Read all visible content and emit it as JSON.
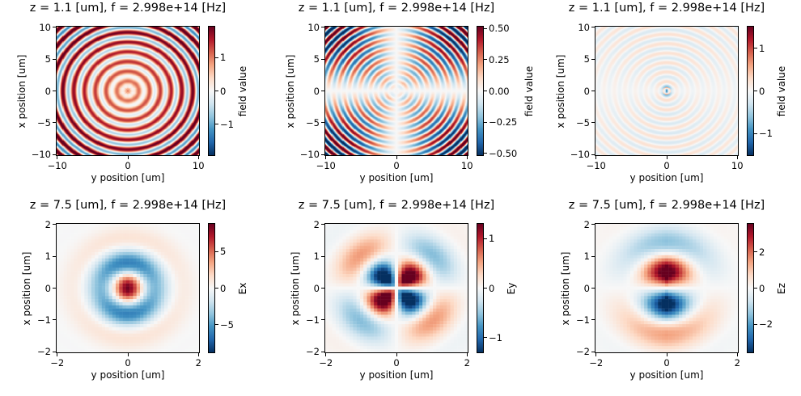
{
  "chart_data": [
    {
      "type": "heatmap",
      "title": "z = 1.1 [um], f = 2.998e+14 [Hz]",
      "xlabel": "y position [um]",
      "ylabel": "x position [um]",
      "xlim": [
        -10.2,
        10.2
      ],
      "ylim": [
        -10.2,
        10.2
      ],
      "xticks": [
        -10,
        0,
        10
      ],
      "yticks": [
        -10,
        -5,
        0,
        5,
        10
      ],
      "colorbar": {
        "label": "field value",
        "clim": [
          -1.95,
          1.95
        ],
        "ticks": [
          -1,
          0,
          1
        ],
        "tick_labels": [
          "−1",
          "0",
          "1"
        ]
      },
      "colormap": "RdBu_r",
      "pattern": "concentric rings"
    },
    {
      "type": "heatmap",
      "title": "z = 1.1 [um], f = 2.998e+14 [Hz]",
      "xlabel": "y position [um]",
      "ylabel": "x position [um]",
      "xlim": [
        -10.2,
        10.2
      ],
      "ylim": [
        -10.2,
        10.2
      ],
      "xticks": [
        -10,
        0,
        10
      ],
      "yticks": [
        -10,
        -5,
        0,
        5,
        10
      ],
      "colorbar": {
        "label": "field value",
        "clim": [
          -0.52,
          0.52
        ],
        "ticks": [
          -0.5,
          -0.25,
          0,
          0.25,
          0.5
        ],
        "tick_labels": [
          "−0.50",
          "−0.25",
          "0.00",
          "0.25",
          "0.50"
        ]
      },
      "colormap": "RdBu_r",
      "pattern": "quadrupole rings"
    },
    {
      "type": "heatmap",
      "title": "z = 1.1 [um], f = 2.998e+14 [Hz]",
      "xlabel": "y position [um]",
      "ylabel": "x position [um]",
      "xlim": [
        -10.2,
        10.2
      ],
      "ylim": [
        -10.2,
        10.2
      ],
      "xticks": [
        -10,
        0,
        10
      ],
      "yticks": [
        -10,
        -5,
        0,
        5,
        10
      ],
      "colorbar": {
        "label": "field value",
        "clim": [
          -1.53,
          1.53
        ],
        "ticks": [
          -1,
          0,
          1
        ],
        "tick_labels": [
          "−1",
          "0",
          "1"
        ]
      },
      "colormap": "RdBu_r",
      "pattern": "dipole rings"
    },
    {
      "type": "heatmap",
      "title": "z = 7.5 [um], f = 2.998e+14 [Hz]",
      "xlabel": "y position [um]",
      "ylabel": "x position [um]",
      "xlim": [
        -2.04,
        2.04
      ],
      "ylim": [
        -2.04,
        2.04
      ],
      "xticks": [
        -2,
        0,
        2
      ],
      "yticks": [
        -2,
        -1,
        0,
        1,
        2
      ],
      "colorbar": {
        "label": "Ex",
        "clim": [
          -8.9,
          8.9
        ],
        "ticks": [
          -5,
          0,
          5
        ],
        "tick_labels": [
          "−5",
          "0",
          "5"
        ]
      },
      "colormap": "RdBu_r",
      "pattern": "central peak"
    },
    {
      "type": "heatmap",
      "title": "z = 7.5 [um], f = 2.998e+14 [Hz]",
      "xlabel": "y position [um]",
      "ylabel": "x position [um]",
      "xlim": [
        -2.04,
        2.04
      ],
      "ylim": [
        -2.04,
        2.04
      ],
      "xticks": [
        -2,
        0,
        2
      ],
      "yticks": [
        -2,
        -1,
        0,
        1,
        2
      ],
      "colorbar": {
        "label": "Ey",
        "clim": [
          -1.31,
          1.31
        ],
        "ticks": [
          -1,
          0,
          1
        ],
        "tick_labels": [
          "−1",
          "0",
          "1"
        ]
      },
      "colormap": "RdBu_r",
      "pattern": "quadrupole"
    },
    {
      "type": "heatmap",
      "title": "z = 7.5 [um], f = 2.998e+14 [Hz]",
      "xlabel": "y position [um]",
      "ylabel": "x position [um]",
      "xlim": [
        -2.04,
        2.04
      ],
      "ylim": [
        -2.04,
        2.04
      ],
      "xticks": [
        -2,
        0,
        2
      ],
      "yticks": [
        -2,
        -1,
        0,
        1,
        2
      ],
      "colorbar": {
        "label": "Ez",
        "clim": [
          -3.6,
          3.6
        ],
        "ticks": [
          -2,
          0,
          2
        ],
        "tick_labels": [
          "−2",
          "0",
          "2"
        ]
      },
      "colormap": "RdBu_r",
      "pattern": "dipole"
    }
  ]
}
